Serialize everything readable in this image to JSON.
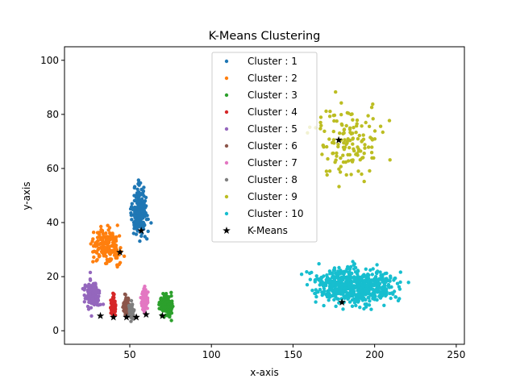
{
  "chart_data": {
    "type": "scatter",
    "title": "K-Means Clustering",
    "xlabel": "x-axis",
    "ylabel": "y-axis",
    "xlim": [
      10,
      255
    ],
    "ylim": [
      -5,
      105
    ],
    "xticks": [
      50,
      100,
      150,
      200,
      250
    ],
    "yticks": [
      0,
      20,
      40,
      60,
      80,
      100
    ],
    "grid": false,
    "legend_position": "top-center",
    "series": [
      {
        "name": "Cluster : 1",
        "color": "#1f77b4",
        "region": {
          "x": [
            44,
            68
          ],
          "y": [
            24,
            64
          ],
          "count": 190
        }
      },
      {
        "name": "Cluster : 2",
        "color": "#ff7f0e",
        "region": {
          "x": [
            15,
            56
          ],
          "y": [
            17,
            46
          ],
          "count": 190
        }
      },
      {
        "name": "Cluster : 3",
        "color": "#2ca02c",
        "region": {
          "x": [
            63,
            82
          ],
          "y": [
            1,
            18
          ],
          "count": 160
        }
      },
      {
        "name": "Cluster : 4",
        "color": "#d62728",
        "region": {
          "x": [
            37,
            43
          ],
          "y": [
            1,
            17
          ],
          "count": 110
        }
      },
      {
        "name": "Cluster : 5",
        "color": "#9467bd",
        "region": {
          "x": [
            17,
            37
          ],
          "y": [
            1,
            26
          ],
          "count": 150
        }
      },
      {
        "name": "Cluster : 6",
        "color": "#8c564b",
        "region": {
          "x": [
            44,
            52
          ],
          "y": [
            1,
            17
          ],
          "count": 130
        }
      },
      {
        "name": "Cluster : 7",
        "color": "#e377c2",
        "region": {
          "x": [
            55,
            63
          ],
          "y": [
            1,
            21
          ],
          "count": 130
        }
      },
      {
        "name": "Cluster : 8",
        "color": "#7f7f7f",
        "region": {
          "x": [
            48,
            54
          ],
          "y": [
            1,
            13
          ],
          "count": 110
        }
      },
      {
        "name": "Cluster : 9",
        "color": "#bcbd22",
        "region": {
          "x": [
            135,
            235
          ],
          "y": [
            41,
            100
          ],
          "count": 140
        }
      },
      {
        "name": "Cluster : 10",
        "color": "#17becf",
        "region": {
          "x": [
            133,
            245
          ],
          "y": [
            1,
            32
          ],
          "count": 620
        }
      }
    ],
    "centroids": {
      "name": "K-Means",
      "marker": "star",
      "color": "#000000",
      "points": [
        {
          "x": 57,
          "y": 37
        },
        {
          "x": 44,
          "y": 29
        },
        {
          "x": 70,
          "y": 5.5
        },
        {
          "x": 40,
          "y": 5
        },
        {
          "x": 32,
          "y": 5.5
        },
        {
          "x": 48,
          "y": 5
        },
        {
          "x": 60,
          "y": 6
        },
        {
          "x": 54,
          "y": 5
        },
        {
          "x": 178,
          "y": 70.5
        },
        {
          "x": 180,
          "y": 10.5
        }
      ]
    }
  }
}
